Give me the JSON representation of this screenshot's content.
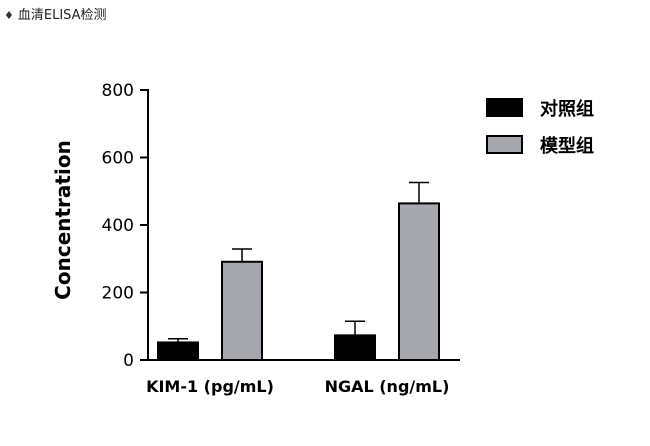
{
  "heading": {
    "bullet": "♦",
    "text": "血清ELISA检测"
  },
  "chart_data": {
    "type": "bar",
    "categories": [
      "KIM-1 (pg/mL)",
      "NGAL (ng/mL)"
    ],
    "series": [
      {
        "name": "对照组",
        "color": "#000000",
        "values": [
          52,
          73
        ],
        "errors": [
          11,
          42
        ]
      },
      {
        "name": "模型组",
        "color": "#a6a7ad",
        "values": [
          291,
          464
        ],
        "errors": [
          38,
          62
        ]
      }
    ],
    "xlabel": "",
    "ylabel": "Concentration",
    "ylim": [
      0,
      800
    ],
    "yticks": [
      "0",
      "200",
      "400",
      "600",
      "800"
    ],
    "grid": false,
    "legend_position": "top-right"
  }
}
